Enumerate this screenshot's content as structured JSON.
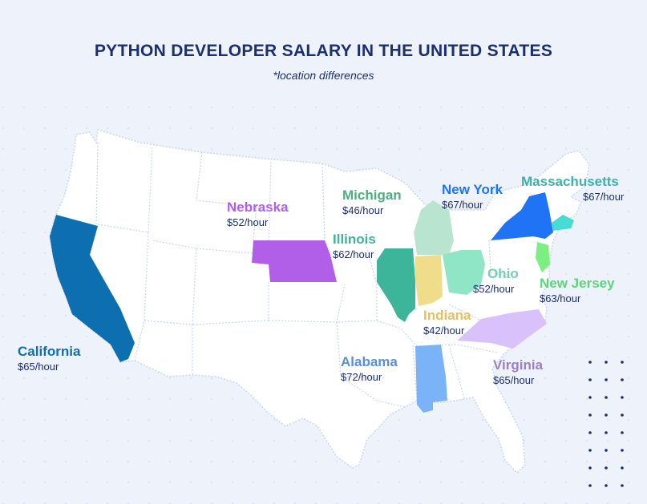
{
  "title": "PYTHON DEVELOPER SALARY IN THE UNITED STATES",
  "subtitle": "*location differences",
  "states": [
    {
      "key": "california",
      "name": "California",
      "salary": "$65/hour",
      "color": "#0e6fb0"
    },
    {
      "key": "nebraska",
      "name": "Nebraska",
      "salary": "$52/hour",
      "color": "#b15fe8"
    },
    {
      "key": "michigan",
      "name": "Michigan",
      "salary": "$46/hour",
      "color": "#4fae7e"
    },
    {
      "key": "illinois",
      "name": "Illinois",
      "salary": "$62/hour",
      "color": "#3db59a"
    },
    {
      "key": "new_york",
      "name": "New York",
      "salary": "$67/hour",
      "color": "#1e74f5"
    },
    {
      "key": "massachusetts",
      "name": "Massachusetts",
      "salary": "$67/hour",
      "color": "#3fb0ab"
    },
    {
      "key": "ohio",
      "name": "Ohio",
      "salary": "$52/hour",
      "color": "#77ccb4"
    },
    {
      "key": "new_jersey",
      "name": "New Jersey",
      "salary": "$63/hour",
      "color": "#5dd47a"
    },
    {
      "key": "indiana",
      "name": "Indiana",
      "salary": "$42/hour",
      "color": "#e2c063"
    },
    {
      "key": "alabama",
      "name": "Alabama",
      "salary": "$72/hour",
      "color": "#5b8fd4"
    },
    {
      "key": "virginia",
      "name": "Virginia",
      "salary": "$65/hour",
      "color": "#9b7fc4"
    }
  ]
}
